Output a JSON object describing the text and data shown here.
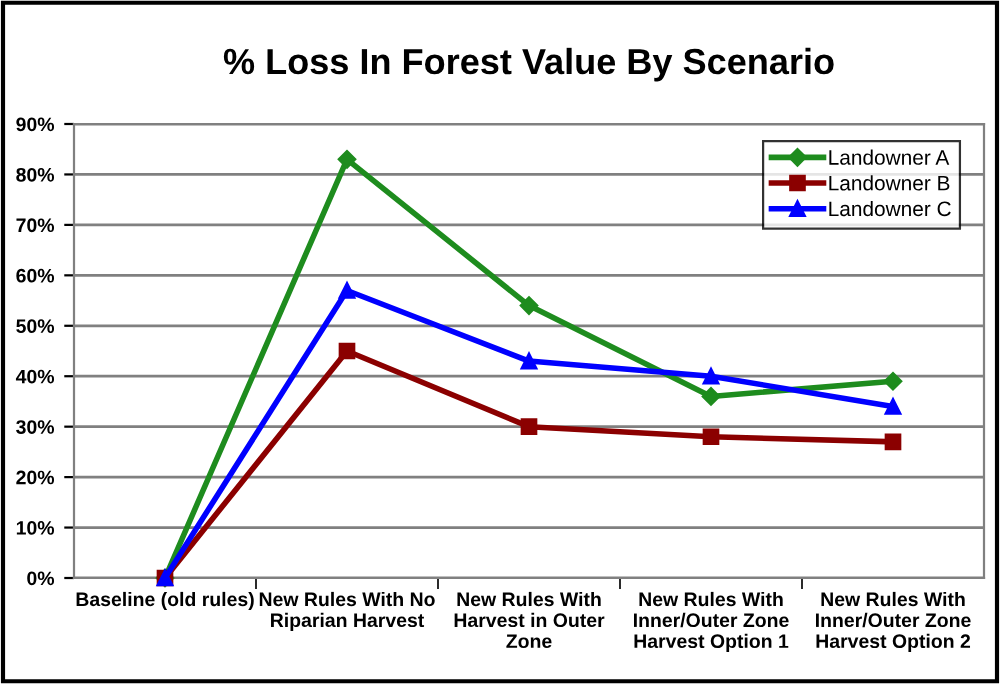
{
  "chart_data": {
    "type": "line",
    "title": "% Loss In Forest Value By Scenario",
    "categories": [
      "Baseline (old rules)",
      "New Rules With No\nRiparian Harvest",
      "New Rules With\nHarvest in Outer\nZone",
      "New Rules With\nInner/Outer Zone\nHarvest Option 1",
      "New Rules With\nInner/Outer Zone\nHarvest Option 2"
    ],
    "series": [
      {
        "name": "Landowner A",
        "color": "#1e8c1e",
        "marker": "diamond",
        "values": [
          0,
          83,
          54,
          36,
          39
        ]
      },
      {
        "name": "Landowner B",
        "color": "#8b0000",
        "marker": "square",
        "values": [
          0,
          45,
          30,
          28,
          27
        ]
      },
      {
        "name": "Landowner C",
        "color": "#0000ff",
        "marker": "triangle",
        "values": [
          0,
          57,
          43,
          40,
          34
        ]
      }
    ],
    "ylim": [
      0,
      90
    ],
    "yticks": [
      {
        "value": 0,
        "label": "0%"
      },
      {
        "value": 10,
        "label": "10%"
      },
      {
        "value": 20,
        "label": "20%"
      },
      {
        "value": 30,
        "label": "30%"
      },
      {
        "value": 40,
        "label": "40%"
      },
      {
        "value": 50,
        "label": "50%"
      },
      {
        "value": 60,
        "label": "60%"
      },
      {
        "value": 70,
        "label": "70%"
      },
      {
        "value": 80,
        "label": "80%"
      },
      {
        "value": 90,
        "label": "90%"
      }
    ],
    "grid": "y",
    "legend": "top right",
    "line_style": "solid"
  }
}
